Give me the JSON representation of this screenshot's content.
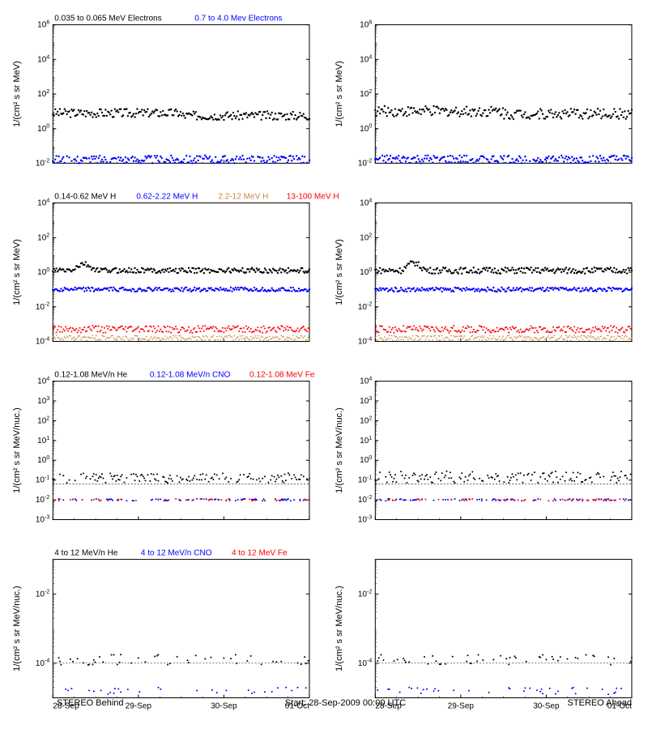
{
  "global": {
    "start_label": "Start: 28-Sep-2009 00:00 UTC",
    "behind_label": "STEREO Behind",
    "ahead_label": "STEREO Ahead",
    "x_ticks": [
      "28-Sep",
      "29-Sep",
      "30-Sep",
      "01-Oct"
    ],
    "background_color": "#ffffff",
    "axis_color": "#000000",
    "grid_color": "#000000",
    "font_size_axis": 11,
    "font_size_tick": 10
  },
  "rows": [
    {
      "ylabel": "1/(cm² s sr MeV)",
      "ylim": [
        -2,
        6
      ],
      "ytick_exp": [
        -2,
        0,
        2,
        4,
        6
      ],
      "legend": [
        {
          "text": "0.035 to 0.065 MeV Electrons",
          "color": "#000000"
        },
        {
          "text": "0.7 to 4.0 Mev Electrons",
          "color": "#0000ff"
        }
      ],
      "series_left": [
        {
          "color": "#000000",
          "mean": 0.9,
          "jitter": 0.25,
          "marker_size": 1.2
        },
        {
          "color": "#0000ff",
          "mean": -1.8,
          "jitter": 0.25,
          "marker_size": 1.2
        }
      ],
      "series_right": [
        {
          "color": "#000000",
          "mean": 1.0,
          "jitter": 0.3,
          "marker_size": 1.2
        },
        {
          "color": "#0000ff",
          "mean": -1.8,
          "jitter": 0.25,
          "marker_size": 1.2
        }
      ]
    },
    {
      "ylabel": "1/(cm² s sr MeV)",
      "ylim": [
        -4,
        4
      ],
      "ytick_exp": [
        -4,
        -2,
        0,
        2,
        4
      ],
      "legend": [
        {
          "text": "0.14-0.62 MeV H",
          "color": "#000000"
        },
        {
          "text": "0.62-2.22 MeV H",
          "color": "#0000ff"
        },
        {
          "text": "2.2-12 MeV H",
          "color": "#cd853f"
        },
        {
          "text": "13-100 MeV H",
          "color": "#ff0000"
        }
      ],
      "series_left": [
        {
          "color": "#000000",
          "mean": 0.1,
          "jitter": 0.15,
          "marker_size": 1.2,
          "bump_at": 0.12,
          "bump_h": 0.4
        },
        {
          "color": "#0000ff",
          "mean": -1.0,
          "jitter": 0.12,
          "marker_size": 1.2
        },
        {
          "color": "#ff0000",
          "mean": -3.3,
          "jitter": 0.2,
          "marker_size": 1.0
        },
        {
          "color": "#cd853f",
          "mean": -3.8,
          "jitter": 0.15,
          "marker_size": 0.8
        }
      ],
      "series_right": [
        {
          "color": "#000000",
          "mean": 0.1,
          "jitter": 0.18,
          "marker_size": 1.2,
          "bump_at": 0.15,
          "bump_h": 0.5
        },
        {
          "color": "#0000ff",
          "mean": -1.0,
          "jitter": 0.12,
          "marker_size": 1.2
        },
        {
          "color": "#ff0000",
          "mean": -3.3,
          "jitter": 0.2,
          "marker_size": 1.0
        },
        {
          "color": "#cd853f",
          "mean": -3.8,
          "jitter": 0.15,
          "marker_size": 0.8
        }
      ]
    },
    {
      "ylabel": "1/(cm² s sr MeV/nuc.)",
      "ylim": [
        -3,
        4
      ],
      "ytick_exp": [
        -3,
        -2,
        -1,
        0,
        1,
        2,
        3,
        4
      ],
      "legend": [
        {
          "text": "0.12-1.08 MeV/n He",
          "color": "#000000"
        },
        {
          "text": "0.12-1.08 MeV/n CNO",
          "color": "#0000ff"
        },
        {
          "text": "0.12-1.08 MeV Fe",
          "color": "#ff0000"
        }
      ],
      "series_left": [
        {
          "color": "#000000",
          "mean": -0.9,
          "jitter": 0.25,
          "marker_size": 1.0,
          "sparse": 0.6
        },
        {
          "color": "#000000",
          "mean": -1.2,
          "jitter": 0.0,
          "marker_size": 0.6,
          "line": true
        },
        {
          "color": "#0000ff",
          "mean": -2.0,
          "jitter": 0.05,
          "marker_size": 1.0,
          "sparse": 0.3
        },
        {
          "color": "#ff0000",
          "mean": -2.0,
          "jitter": 0.05,
          "marker_size": 1.0,
          "sparse": 0.2
        }
      ],
      "series_right": [
        {
          "color": "#000000",
          "mean": -0.85,
          "jitter": 0.3,
          "marker_size": 1.0,
          "sparse": 0.6
        },
        {
          "color": "#000000",
          "mean": -1.2,
          "jitter": 0.0,
          "marker_size": 0.6,
          "line": true
        },
        {
          "color": "#0000ff",
          "mean": -2.0,
          "jitter": 0.05,
          "marker_size": 1.0,
          "sparse": 0.3
        },
        {
          "color": "#ff0000",
          "mean": -2.0,
          "jitter": 0.05,
          "marker_size": 1.0,
          "sparse": 0.2
        }
      ]
    },
    {
      "ylabel": "1/(cm² s sr MeV/nuc.)",
      "ylim": [
        -5,
        -1
      ],
      "ytick_exp": [
        -4,
        -2
      ],
      "legend": [
        {
          "text": "4 to 12 MeV/n He",
          "color": "#000000"
        },
        {
          "text": "4 to 12 MeV/n CNO",
          "color": "#0000ff"
        },
        {
          "text": "4 to 12 MeV Fe",
          "color": "#ff0000"
        }
      ],
      "series_left": [
        {
          "color": "#000000",
          "mean": -3.9,
          "jitter": 0.15,
          "marker_size": 1.0,
          "sparse": 0.25
        },
        {
          "color": "#000000",
          "mean": -4.0,
          "jitter": 0.0,
          "marker_size": 0.5,
          "line": true
        },
        {
          "color": "#0000ff",
          "mean": -4.8,
          "jitter": 0.1,
          "marker_size": 1.0,
          "sparse": 0.15
        }
      ],
      "series_right": [
        {
          "color": "#000000",
          "mean": -3.9,
          "jitter": 0.15,
          "marker_size": 1.0,
          "sparse": 0.25
        },
        {
          "color": "#000000",
          "mean": -4.0,
          "jitter": 0.0,
          "marker_size": 0.5,
          "line": true
        },
        {
          "color": "#0000ff",
          "mean": -4.8,
          "jitter": 0.1,
          "marker_size": 1.0,
          "sparse": 0.15
        }
      ]
    }
  ]
}
